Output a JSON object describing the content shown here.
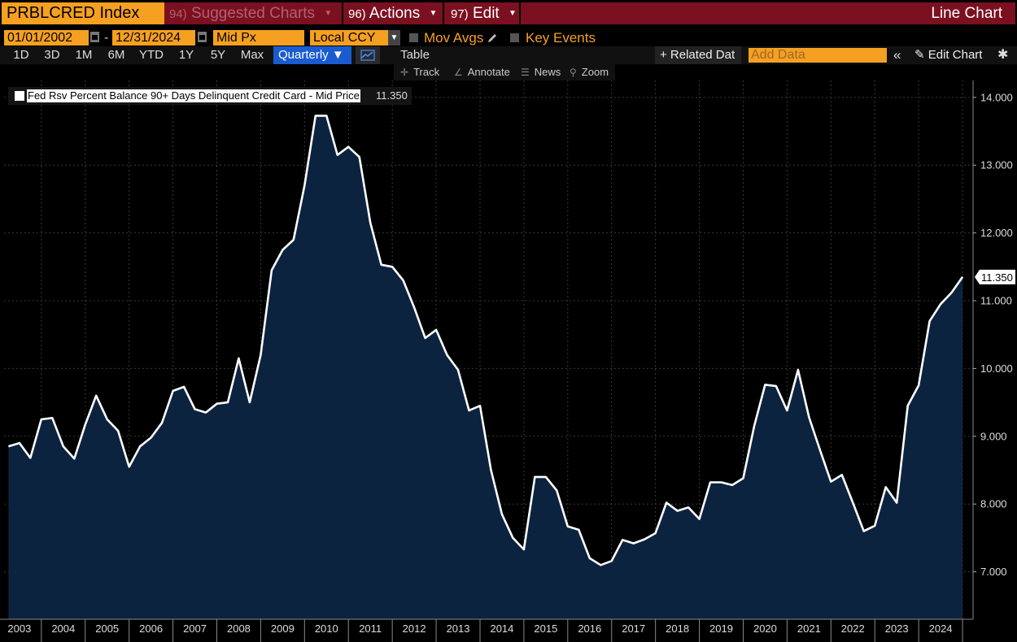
{
  "header": {
    "ticker": "PRBLCRED Index",
    "menus": [
      {
        "num": "94)",
        "label": "Suggested Charts",
        "dim": true
      },
      {
        "num": "96)",
        "label": "Actions",
        "dim": false
      },
      {
        "num": "97)",
        "label": "Edit",
        "dim": false
      }
    ],
    "chart_type": "Line Chart"
  },
  "controls": {
    "start_date": "01/01/2002",
    "end_date": "12/31/2024",
    "dash": "-",
    "price_field": "Mid Px",
    "currency": "Local CCY",
    "mov_avgs": "Mov Avgs",
    "key_events": "Key Events",
    "periods": [
      "1D",
      "3D",
      "1M",
      "6M",
      "YTD",
      "1Y",
      "5Y",
      "Max"
    ],
    "frequency": "Quarterly ▼",
    "table": "Table",
    "related_data": "+ Related Dat",
    "add_data_placeholder": "Add Data",
    "chevrons": "«",
    "edit_chart": "Edit Chart",
    "tools": [
      "Track",
      "Annotate",
      "News",
      "Zoom"
    ]
  },
  "legend": {
    "name": "Fed Rsv Percent Balance 90+ Days Delinquent Credit Card - Mid Price",
    "value": "11.350"
  },
  "colors": {
    "line": "#ffffff",
    "area": "#0c2340",
    "ticker_bg": "#f5a020",
    "menu_bg": "#7a1020"
  },
  "chart_data": {
    "type": "area",
    "title": "",
    "xlabel": "",
    "ylabel": "",
    "ylim": [
      6.3,
      14.25
    ],
    "xlim": [
      2002.9,
      2024.99
    ],
    "y_ticks": [
      "7.000",
      "8.000",
      "9.000",
      "10.000",
      "11.000",
      "12.000",
      "13.000",
      "14.000"
    ],
    "x_ticks": [
      "2003",
      "2004",
      "2005",
      "2006",
      "2007",
      "2008",
      "2009",
      "2010",
      "2011",
      "2012",
      "2013",
      "2014",
      "2015",
      "2016",
      "2017",
      "2018",
      "2019",
      "2020",
      "2021",
      "2022",
      "2023",
      "2024"
    ],
    "last_value_label": "11.350",
    "series": [
      {
        "name": "Fed Rsv Percent Balance 90+ Days Delinquent Credit Card - Mid Price",
        "x": [
          2003.0,
          2003.25,
          2003.5,
          2003.75,
          2004.0,
          2004.25,
          2004.5,
          2004.75,
          2005.0,
          2005.25,
          2005.5,
          2005.75,
          2006.0,
          2006.25,
          2006.5,
          2006.75,
          2007.0,
          2007.25,
          2007.5,
          2007.75,
          2008.0,
          2008.25,
          2008.5,
          2008.75,
          2009.0,
          2009.25,
          2009.5,
          2009.75,
          2010.0,
          2010.25,
          2010.5,
          2010.75,
          2011.0,
          2011.25,
          2011.5,
          2011.75,
          2012.0,
          2012.25,
          2012.5,
          2012.75,
          2013.0,
          2013.25,
          2013.5,
          2013.75,
          2014.0,
          2014.25,
          2014.5,
          2014.75,
          2015.0,
          2015.25,
          2015.5,
          2015.75,
          2016.0,
          2016.25,
          2016.5,
          2016.75,
          2017.0,
          2017.25,
          2017.5,
          2017.75,
          2018.0,
          2018.25,
          2018.5,
          2018.75,
          2019.0,
          2019.25,
          2019.5,
          2019.75,
          2020.0,
          2020.25,
          2020.5,
          2020.75,
          2021.0,
          2021.25,
          2021.5,
          2021.75,
          2022.0,
          2022.25,
          2022.5,
          2022.75,
          2023.0,
          2023.25,
          2023.5,
          2023.75,
          2024.0,
          2024.25,
          2024.5,
          2024.75
        ],
        "values": [
          8.85,
          8.9,
          8.68,
          9.25,
          9.27,
          8.85,
          8.67,
          9.17,
          9.6,
          9.25,
          9.08,
          8.55,
          8.85,
          8.98,
          9.2,
          9.67,
          9.73,
          9.4,
          9.35,
          9.48,
          9.5,
          10.15,
          9.5,
          10.2,
          11.45,
          11.75,
          11.9,
          12.7,
          13.73,
          13.73,
          13.15,
          13.27,
          13.12,
          12.15,
          11.53,
          11.5,
          11.3,
          10.9,
          10.45,
          10.57,
          10.2,
          9.98,
          9.38,
          9.45,
          8.5,
          7.85,
          7.5,
          7.33,
          8.4,
          8.4,
          8.2,
          7.67,
          7.62,
          7.2,
          7.1,
          7.16,
          7.47,
          7.42,
          7.48,
          7.57,
          8.02,
          7.9,
          7.95,
          7.78,
          8.32,
          8.32,
          8.28,
          8.38,
          9.15,
          9.76,
          9.74,
          9.38,
          9.98,
          9.28,
          8.8,
          8.33,
          8.43,
          8.02,
          7.6,
          7.68,
          8.25,
          8.02,
          9.45,
          9.75,
          10.7,
          10.95,
          11.12,
          11.35
        ]
      }
    ],
    "grid": true,
    "legend_position": "top-left"
  }
}
